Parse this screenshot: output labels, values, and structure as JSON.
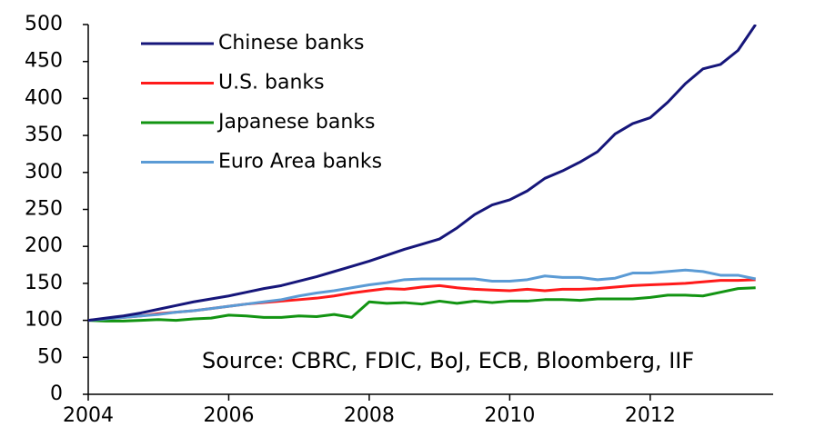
{
  "chart_data": {
    "type": "line",
    "x": [
      2004,
      2004.25,
      2004.5,
      2004.75,
      2005,
      2005.25,
      2005.5,
      2005.75,
      2006,
      2006.25,
      2006.5,
      2006.75,
      2007,
      2007.25,
      2007.5,
      2007.75,
      2008,
      2008.25,
      2008.5,
      2008.75,
      2009,
      2009.25,
      2009.5,
      2009.75,
      2010,
      2010.25,
      2010.5,
      2010.75,
      2011,
      2011.25,
      2011.5,
      2011.75,
      2012,
      2012.25,
      2012.5,
      2012.75,
      2013,
      2013.25,
      2013.5
    ],
    "series": [
      {
        "name": "Chinese banks",
        "color": "#16167a",
        "values": [
          100,
          103,
          106,
          110,
          115,
          120,
          125,
          129,
          133,
          138,
          143,
          147,
          153,
          159,
          166,
          173,
          180,
          188,
          196,
          203,
          210,
          225,
          243,
          256,
          263,
          275,
          292,
          302,
          314,
          328,
          352,
          366,
          374,
          395,
          420,
          440,
          446,
          465,
          500
        ]
      },
      {
        "name": "U.S. banks",
        "color": "#ff1a1a",
        "values": [
          100,
          102,
          104,
          106,
          109,
          111,
          113,
          116,
          119,
          122,
          124,
          126,
          128,
          130,
          133,
          137,
          140,
          143,
          142,
          145,
          147,
          144,
          142,
          141,
          140,
          142,
          140,
          142,
          142,
          143,
          145,
          147,
          148,
          149,
          150,
          152,
          154,
          154,
          155
        ]
      },
      {
        "name": "Japanese banks",
        "color": "#129412",
        "values": [
          100,
          99,
          99,
          100,
          101,
          100,
          102,
          103,
          107,
          106,
          104,
          104,
          106,
          105,
          108,
          104,
          125,
          123,
          124,
          122,
          126,
          123,
          126,
          124,
          126,
          126,
          128,
          128,
          127,
          129,
          129,
          129,
          131,
          134,
          134,
          133,
          138,
          143,
          144
        ]
      },
      {
        "name": "Euro Area banks",
        "color": "#5b9bd5",
        "values": [
          100,
          102,
          104,
          106,
          108,
          111,
          113,
          116,
          119,
          122,
          125,
          128,
          133,
          137,
          140,
          144,
          148,
          151,
          155,
          156,
          156,
          156,
          156,
          153,
          153,
          155,
          160,
          158,
          158,
          155,
          157,
          164,
          164,
          166,
          168,
          166,
          161,
          161,
          156
        ]
      }
    ],
    "xlim": [
      2004,
      2013.75
    ],
    "xticks": [
      2004,
      2006,
      2008,
      2010,
      2012
    ],
    "ylim": [
      0,
      500
    ],
    "yticks": [
      0,
      50,
      100,
      150,
      200,
      250,
      300,
      350,
      400,
      450,
      500
    ],
    "annotation": "Source: CBRC, FDIC, BoJ, ECB, Bloomberg, IIF",
    "legend": "upper left"
  }
}
